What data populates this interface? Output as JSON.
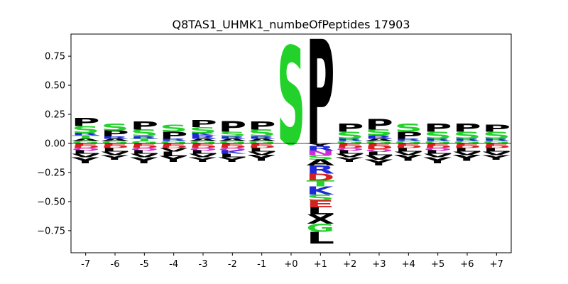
{
  "chart_data": {
    "type": "sequence-logo",
    "title": "Q8TAS1_UHMK1_numbeOfPeptides 17903",
    "xlabel": "",
    "ylabel": "",
    "x": [
      "-7",
      "-6",
      "-5",
      "-4",
      "-3",
      "-2",
      "-1",
      "+0",
      "+1",
      "+2",
      "+3",
      "+4",
      "+5",
      "+6",
      "+7"
    ],
    "ylim": [
      -0.94,
      0.94
    ],
    "yticks": [
      -0.75,
      -0.5,
      -0.25,
      0.0,
      0.25,
      0.5,
      0.75
    ],
    "ytick_labels": [
      "−0.75",
      "−0.50",
      "−0.25",
      "0.00",
      "0.25",
      "0.50",
      "0.75"
    ],
    "colors": {
      "P": "#000000",
      "S": "#22d12a",
      "T": "#22d12a",
      "G": "#22d12a",
      "R": "#1f2ad6",
      "K": "#1f2ad6",
      "H": "#1f2ad6",
      "D": "#d62020",
      "E": "#d62020",
      "Y": "#000000",
      "L": "#000000",
      "V": "#000000",
      "I": "#000000",
      "A": "#000000",
      "F": "#000000",
      "M": "#000000",
      "W": "#000000",
      "X": "#000000",
      "N": "#d12ad1",
      "Q": "#d12ad1",
      "C": "#d6a020"
    },
    "positions": [
      {
        "pos": "-7",
        "positive": [
          {
            "aa": "G",
            "h": 0.02
          },
          {
            "aa": "A",
            "h": 0.02
          },
          {
            "aa": "T",
            "h": 0.03
          },
          {
            "aa": "R",
            "h": 0.02
          },
          {
            "aa": "S",
            "h": 0.06
          },
          {
            "aa": "P",
            "h": 0.07
          }
        ],
        "negative": [
          {
            "aa": "E",
            "h": 0.02
          },
          {
            "aa": "D",
            "h": 0.02
          },
          {
            "aa": "Q",
            "h": 0.02
          },
          {
            "aa": "L",
            "h": 0.03
          },
          {
            "aa": "V",
            "h": 0.03
          },
          {
            "aa": "Y",
            "h": 0.05
          }
        ]
      },
      {
        "pos": "-6",
        "positive": [
          {
            "aa": "G",
            "h": 0.02
          },
          {
            "aa": "A",
            "h": 0.02
          },
          {
            "aa": "R",
            "h": 0.02
          },
          {
            "aa": "P",
            "h": 0.05
          },
          {
            "aa": "S",
            "h": 0.06
          }
        ],
        "negative": [
          {
            "aa": "E",
            "h": 0.02
          },
          {
            "aa": "D",
            "h": 0.02
          },
          {
            "aa": "L",
            "h": 0.03
          },
          {
            "aa": "V",
            "h": 0.03
          },
          {
            "aa": "Y",
            "h": 0.04
          }
        ]
      },
      {
        "pos": "-5",
        "positive": [
          {
            "aa": "G",
            "h": 0.02
          },
          {
            "aa": "T",
            "h": 0.02
          },
          {
            "aa": "R",
            "h": 0.02
          },
          {
            "aa": "S",
            "h": 0.06
          },
          {
            "aa": "P",
            "h": 0.07
          }
        ],
        "negative": [
          {
            "aa": "E",
            "h": 0.02
          },
          {
            "aa": "D",
            "h": 0.02
          },
          {
            "aa": "Q",
            "h": 0.02
          },
          {
            "aa": "L",
            "h": 0.03
          },
          {
            "aa": "V",
            "h": 0.03
          },
          {
            "aa": "Y",
            "h": 0.05
          }
        ]
      },
      {
        "pos": "-4",
        "positive": [
          {
            "aa": "G",
            "h": 0.02
          },
          {
            "aa": "R",
            "h": 0.02
          },
          {
            "aa": "P",
            "h": 0.06
          },
          {
            "aa": "S",
            "h": 0.06
          }
        ],
        "negative": [
          {
            "aa": "E",
            "h": 0.02
          },
          {
            "aa": "D",
            "h": 0.02
          },
          {
            "aa": "V",
            "h": 0.03
          },
          {
            "aa": "L",
            "h": 0.04
          },
          {
            "aa": "Y",
            "h": 0.05
          }
        ]
      },
      {
        "pos": "-3",
        "positive": [
          {
            "aa": "G",
            "h": 0.02
          },
          {
            "aa": "A",
            "h": 0.02
          },
          {
            "aa": "R",
            "h": 0.03
          },
          {
            "aa": "K",
            "h": 0.02
          },
          {
            "aa": "S",
            "h": 0.05
          },
          {
            "aa": "P",
            "h": 0.06
          }
        ],
        "negative": [
          {
            "aa": "E",
            "h": 0.02
          },
          {
            "aa": "D",
            "h": 0.02
          },
          {
            "aa": "Q",
            "h": 0.02
          },
          {
            "aa": "L",
            "h": 0.03
          },
          {
            "aa": "V",
            "h": 0.03
          },
          {
            "aa": "Y",
            "h": 0.04
          }
        ]
      },
      {
        "pos": "-2",
        "positive": [
          {
            "aa": "G",
            "h": 0.02
          },
          {
            "aa": "A",
            "h": 0.02
          },
          {
            "aa": "R",
            "h": 0.02
          },
          {
            "aa": "S",
            "h": 0.04
          },
          {
            "aa": "P",
            "h": 0.09
          }
        ],
        "negative": [
          {
            "aa": "E",
            "h": 0.02
          },
          {
            "aa": "D",
            "h": 0.02
          },
          {
            "aa": "Q",
            "h": 0.02
          },
          {
            "aa": "K",
            "h": 0.03
          },
          {
            "aa": "L",
            "h": 0.03
          },
          {
            "aa": "Y",
            "h": 0.04
          }
        ]
      },
      {
        "pos": "-1",
        "positive": [
          {
            "aa": "G",
            "h": 0.02
          },
          {
            "aa": "A",
            "h": 0.02
          },
          {
            "aa": "R",
            "h": 0.02
          },
          {
            "aa": "S",
            "h": 0.06
          },
          {
            "aa": "P",
            "h": 0.07
          }
        ],
        "negative": [
          {
            "aa": "E",
            "h": 0.02
          },
          {
            "aa": "D",
            "h": 0.02
          },
          {
            "aa": "L",
            "h": 0.03
          },
          {
            "aa": "V",
            "h": 0.03
          },
          {
            "aa": "Y",
            "h": 0.05
          }
        ]
      },
      {
        "pos": "+0",
        "positive": [
          {
            "aa": "S",
            "h": 0.84
          }
        ],
        "negative": []
      },
      {
        "pos": "+1",
        "positive": [
          {
            "aa": "P",
            "h": 0.9
          }
        ],
        "negative": [
          {
            "aa": "Y",
            "h": 0.02
          },
          {
            "aa": "R",
            "h": 0.04
          },
          {
            "aa": "N",
            "h": 0.04
          },
          {
            "aa": "S",
            "h": 0.04
          },
          {
            "aa": "A",
            "h": 0.05
          },
          {
            "aa": "R",
            "h": 0.07
          },
          {
            "aa": "D",
            "h": 0.06
          },
          {
            "aa": "T",
            "h": 0.05
          },
          {
            "aa": "K",
            "h": 0.07
          },
          {
            "aa": "S",
            "h": 0.05
          },
          {
            "aa": "E",
            "h": 0.06
          },
          {
            "aa": "L",
            "h": 0.06
          },
          {
            "aa": "X",
            "h": 0.08
          },
          {
            "aa": "G",
            "h": 0.07
          },
          {
            "aa": "L",
            "h": 0.1
          }
        ]
      },
      {
        "pos": "+2",
        "positive": [
          {
            "aa": "G",
            "h": 0.02
          },
          {
            "aa": "R",
            "h": 0.02
          },
          {
            "aa": "S",
            "h": 0.06
          },
          {
            "aa": "P",
            "h": 0.07
          }
        ],
        "negative": [
          {
            "aa": "E",
            "h": 0.02
          },
          {
            "aa": "D",
            "h": 0.02
          },
          {
            "aa": "Q",
            "h": 0.02
          },
          {
            "aa": "L",
            "h": 0.03
          },
          {
            "aa": "V",
            "h": 0.03
          },
          {
            "aa": "Y",
            "h": 0.04
          }
        ]
      },
      {
        "pos": "+3",
        "positive": [
          {
            "aa": "G",
            "h": 0.02
          },
          {
            "aa": "A",
            "h": 0.02
          },
          {
            "aa": "R",
            "h": 0.03
          },
          {
            "aa": "S",
            "h": 0.05
          },
          {
            "aa": "P",
            "h": 0.09
          }
        ],
        "negative": [
          {
            "aa": "E",
            "h": 0.02
          },
          {
            "aa": "D",
            "h": 0.03
          },
          {
            "aa": "Q",
            "h": 0.02
          },
          {
            "aa": "L",
            "h": 0.03
          },
          {
            "aa": "V",
            "h": 0.04
          },
          {
            "aa": "Y",
            "h": 0.05
          }
        ]
      },
      {
        "pos": "+4",
        "positive": [
          {
            "aa": "G",
            "h": 0.02
          },
          {
            "aa": "R",
            "h": 0.02
          },
          {
            "aa": "P",
            "h": 0.06
          },
          {
            "aa": "S",
            "h": 0.07
          }
        ],
        "negative": [
          {
            "aa": "E",
            "h": 0.02
          },
          {
            "aa": "D",
            "h": 0.02
          },
          {
            "aa": "L",
            "h": 0.03
          },
          {
            "aa": "V",
            "h": 0.03
          },
          {
            "aa": "Y",
            "h": 0.05
          }
        ]
      },
      {
        "pos": "+5",
        "positive": [
          {
            "aa": "G",
            "h": 0.02
          },
          {
            "aa": "R",
            "h": 0.02
          },
          {
            "aa": "S",
            "h": 0.06
          },
          {
            "aa": "P",
            "h": 0.07
          }
        ],
        "negative": [
          {
            "aa": "E",
            "h": 0.02
          },
          {
            "aa": "D",
            "h": 0.02
          },
          {
            "aa": "Q",
            "h": 0.02
          },
          {
            "aa": "L",
            "h": 0.03
          },
          {
            "aa": "V",
            "h": 0.03
          },
          {
            "aa": "Y",
            "h": 0.05
          }
        ]
      },
      {
        "pos": "+6",
        "positive": [
          {
            "aa": "G",
            "h": 0.02
          },
          {
            "aa": "R",
            "h": 0.02
          },
          {
            "aa": "S",
            "h": 0.06
          },
          {
            "aa": "P",
            "h": 0.07
          }
        ],
        "negative": [
          {
            "aa": "E",
            "h": 0.02
          },
          {
            "aa": "D",
            "h": 0.02
          },
          {
            "aa": "L",
            "h": 0.03
          },
          {
            "aa": "V",
            "h": 0.03
          },
          {
            "aa": "Y",
            "h": 0.05
          }
        ]
      },
      {
        "pos": "+7",
        "positive": [
          {
            "aa": "G",
            "h": 0.02
          },
          {
            "aa": "R",
            "h": 0.02
          },
          {
            "aa": "S",
            "h": 0.06
          },
          {
            "aa": "P",
            "h": 0.06
          }
        ],
        "negative": [
          {
            "aa": "E",
            "h": 0.02
          },
          {
            "aa": "D",
            "h": 0.02
          },
          {
            "aa": "L",
            "h": 0.03
          },
          {
            "aa": "V",
            "h": 0.03
          },
          {
            "aa": "Y",
            "h": 0.04
          }
        ]
      }
    ]
  }
}
